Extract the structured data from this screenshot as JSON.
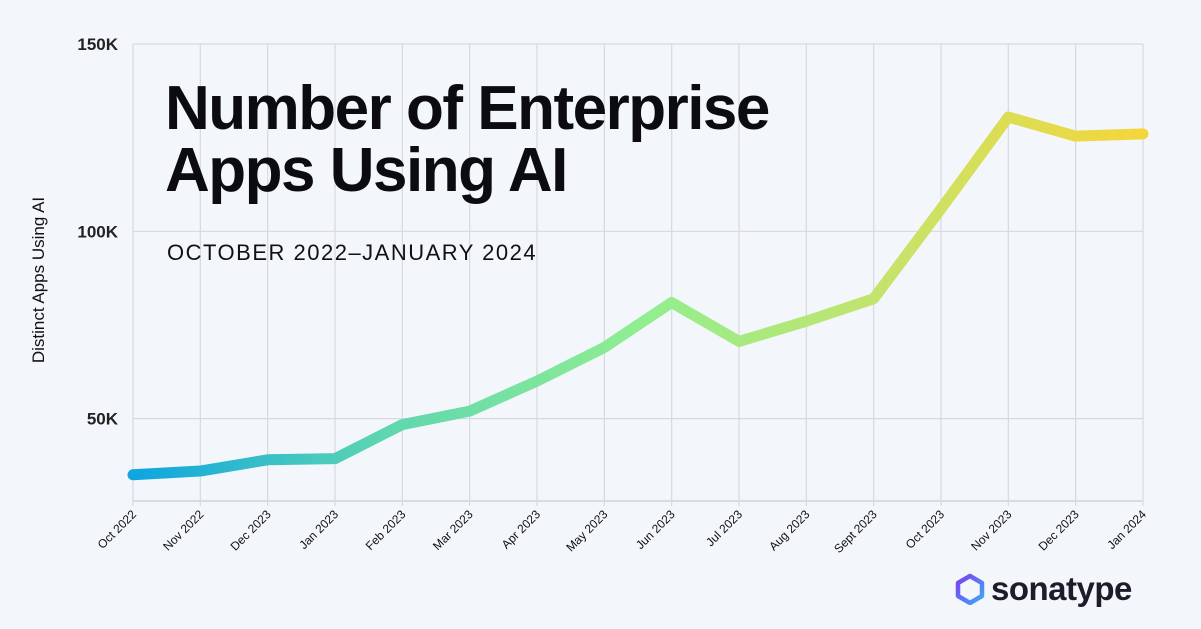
{
  "chart_data": {
    "type": "line",
    "title": "Number of Enterprise Apps Using AI",
    "title_lines": [
      "Number of Enterprise",
      "Apps Using AI"
    ],
    "subtitle": "OCTOBER 2022–JANUARY 2024",
    "xlabel": "",
    "ylabel": "Distinct Apps Using AI",
    "ylim": [
      28000,
      150000
    ],
    "yticks": [
      50000,
      100000,
      150000
    ],
    "ytick_labels": [
      "50K",
      "100K",
      "150K"
    ],
    "grid": true,
    "categories": [
      "Oct 2022",
      "Nov 2022",
      "Dec 2023",
      "Jan 2023",
      "Feb 2023",
      "Mar 2023",
      "Apr 2023",
      "May 2023",
      "Jun 2023",
      "Jul 2023",
      "Aug 2023",
      "Sept 2023",
      "Oct 2023",
      "Nov 2023",
      "Dec 2023",
      "Jan 2024"
    ],
    "values": [
      35000,
      36000,
      39000,
      39300,
      48400,
      52000,
      60000,
      69000,
      81000,
      70600,
      76000,
      82000,
      106000,
      130500,
      125400,
      126000
    ],
    "gradient_colors": [
      "#0ea5e0",
      "#5fd6b0",
      "#90ee90",
      "#c6e36a",
      "#f5d63a"
    ]
  },
  "brand": {
    "name": "sonatype",
    "colors": [
      "#7b3ff2",
      "#3fa9f5"
    ]
  }
}
